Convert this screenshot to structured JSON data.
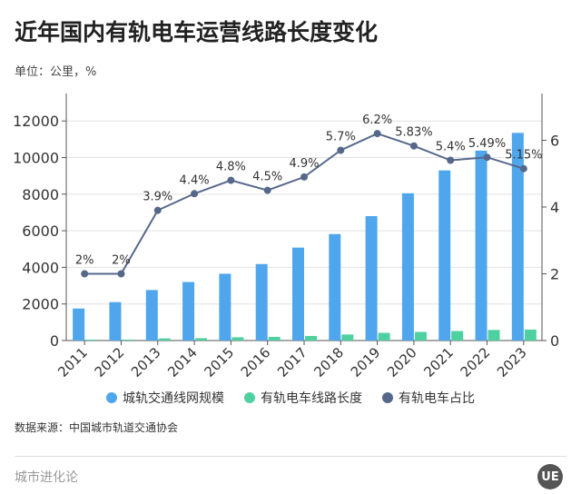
{
  "title": "近年国内有轨电车运营线路长度变化",
  "unit": "单位：公里，%",
  "source": "数据来源：中国城市轨道交通协会",
  "footer": "城市进化论",
  "logo_text": "UE",
  "colors": {
    "blue": "#4fa6ec",
    "green": "#4fd0a0",
    "line": "#56688a"
  },
  "chart_data": {
    "type": "bar",
    "categories": [
      "2011",
      "2012",
      "2013",
      "2014",
      "2015",
      "2016",
      "2017",
      "2018",
      "2019",
      "2020",
      "2021",
      "2022",
      "2023"
    ],
    "series": [
      {
        "name": "城轨交通线网规模",
        "axis": "left",
        "type": "bar",
        "values": [
          1750,
          2100,
          2760,
          3200,
          3650,
          4180,
          5080,
          5820,
          6800,
          8050,
          9300,
          10380,
          11350
        ]
      },
      {
        "name": "有轨电车线路长度",
        "axis": "left",
        "type": "bar",
        "values": [
          50,
          50,
          117,
          130,
          180,
          200,
          250,
          330,
          420,
          470,
          520,
          580,
          600
        ]
      },
      {
        "name": "有轨电车占比",
        "axis": "right",
        "type": "line",
        "values": [
          2,
          2,
          3.9,
          4.4,
          4.8,
          4.5,
          4.9,
          5.7,
          6.2,
          5.83,
          5.4,
          5.49,
          5.15
        ],
        "labels": [
          "2%",
          "2%",
          "3.9%",
          "4.4%",
          "4.8%",
          "4.5%",
          "4.9%",
          "5.7%",
          "6.2%",
          "5.83%",
          "5.4%",
          "5.49%",
          "5.15%"
        ]
      }
    ],
    "y_left": {
      "ticks": [
        0,
        2000,
        4000,
        6000,
        8000,
        10000,
        12000
      ],
      "range": [
        0,
        13500
      ]
    },
    "y_right": {
      "ticks": [
        0,
        2,
        4,
        6
      ],
      "range": [
        0,
        7.4
      ]
    },
    "grid": true,
    "legend": "bottom"
  }
}
